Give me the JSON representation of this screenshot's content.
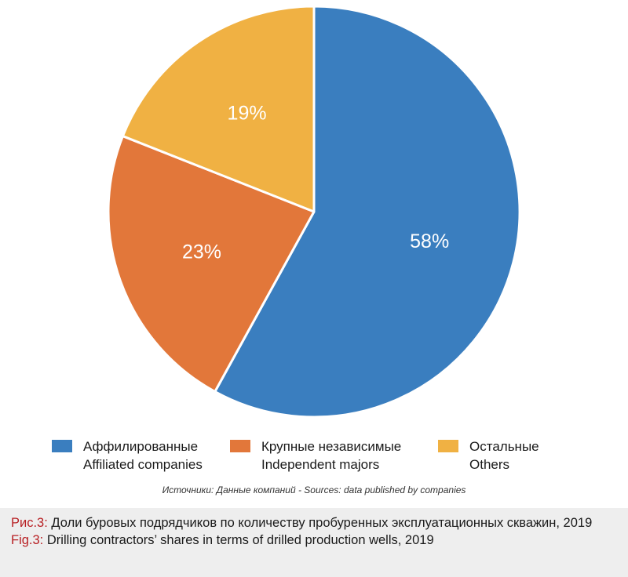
{
  "chart_data": {
    "type": "pie",
    "categories": [
      "Аффилированные / Affiliated companies",
      "Крупные независимые / Independent majors",
      "Остальные / Others"
    ],
    "values": [
      58,
      23,
      19
    ],
    "labels": [
      "58%",
      "23%",
      "19%"
    ],
    "colors": [
      "#3a7ebf",
      "#e2773a",
      "#f0b143"
    ],
    "start_angle_deg": 0,
    "direction": "clockwise",
    "legend_position": "bottom"
  },
  "legend": [
    {
      "ru": "Аффилированные",
      "en": "Affiliated companies",
      "color": "#3a7ebf"
    },
    {
      "ru": "Крупные независимые",
      "en": "Independent majors",
      "color": "#e2773a"
    },
    {
      "ru": "Остальные",
      "en": "Others",
      "color": "#f0b143"
    }
  ],
  "source": "Источники: Данные компаний - Sources: data published by companies",
  "caption": {
    "ru_label": "Рис.3:",
    "ru_text": "Доли буровых подрядчиков по количеству пробуренных эксплуатационных скважин, 2019",
    "en_label": "Fig.3:",
    "en_text": "Drilling contractors’ shares in terms of drilled production wells, 2019"
  }
}
